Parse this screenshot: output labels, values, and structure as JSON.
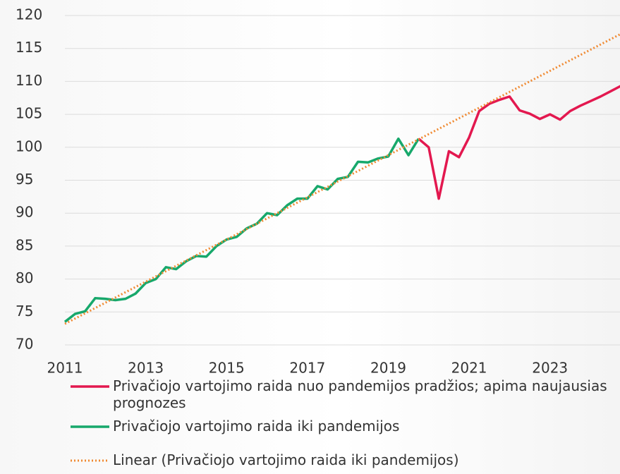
{
  "chart_data": {
    "type": "line",
    "xlim": [
      2011,
      2024.75
    ],
    "xticks": [
      2011,
      2013,
      2015,
      2017,
      2019,
      2021,
      2023
    ],
    "ylim": [
      70,
      120
    ],
    "yticks": [
      70,
      75,
      80,
      85,
      90,
      95,
      100,
      105,
      110,
      115,
      120
    ],
    "grid": true,
    "legend": "bottom",
    "series": [
      {
        "name": "Privačiojo vartojimo raida nuo pandemijos pradžios; apima naujausias prognozes",
        "color": "#e3184f",
        "style": "solid",
        "x": [
          2019.75,
          2020,
          2020.25,
          2020.5,
          2020.75,
          2021,
          2021.25,
          2021.5,
          2021.75,
          2022,
          2022.25,
          2022.5,
          2022.75,
          2023,
          2023.25,
          2023.5,
          2023.75,
          2024,
          2024.25,
          2024.5,
          2024.75
        ],
        "values": [
          101.3,
          100.0,
          92.2,
          99.4,
          98.5,
          101.5,
          105.5,
          106.6,
          107.2,
          107.7,
          105.6,
          105.1,
          104.3,
          105.0,
          104.2,
          105.5,
          106.3,
          107.0,
          107.7,
          108.5,
          109.3
        ]
      },
      {
        "name": "Privačiojo vartojimo raida iki pandemijos",
        "color": "#17a86b",
        "style": "solid",
        "x": [
          2011,
          2011.25,
          2011.5,
          2011.75,
          2012,
          2012.25,
          2012.5,
          2012.75,
          2013,
          2013.25,
          2013.5,
          2013.75,
          2014,
          2014.25,
          2014.5,
          2014.75,
          2015,
          2015.25,
          2015.5,
          2015.75,
          2016,
          2016.25,
          2016.5,
          2016.75,
          2017,
          2017.25,
          2017.5,
          2017.75,
          2018,
          2018.25,
          2018.5,
          2018.75,
          2019,
          2019.25,
          2019.5,
          2019.75
        ],
        "values": [
          73.5,
          74.7,
          75.1,
          77.1,
          77.0,
          76.8,
          77.0,
          77.8,
          79.4,
          80.0,
          81.8,
          81.5,
          82.7,
          83.5,
          83.4,
          85.0,
          86.0,
          86.4,
          87.7,
          88.4,
          90.0,
          89.7,
          91.2,
          92.2,
          92.2,
          94.1,
          93.6,
          95.2,
          95.5,
          97.8,
          97.7,
          98.3,
          98.6,
          101.3,
          98.8,
          101.3
        ]
      },
      {
        "name": "Linear (Privačiojo vartojimo raida iki pandemijos)",
        "color": "#f08a32",
        "style": "dotted",
        "x": [
          2011,
          2024.75
        ],
        "values": [
          73.2,
          117.2
        ]
      }
    ]
  }
}
